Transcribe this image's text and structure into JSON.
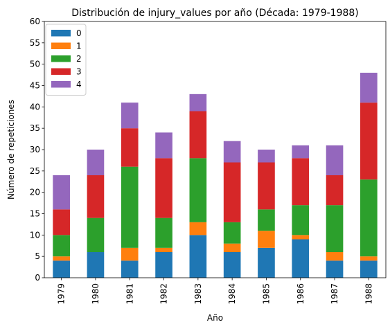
{
  "chart_data": {
    "type": "bar",
    "stacked": true,
    "title": "Distribución de injury_values por año (Década: 1979-1988)",
    "xlabel": "Año",
    "ylabel": "Número de repeticiones",
    "categories": [
      "1979",
      "1980",
      "1981",
      "1982",
      "1983",
      "1984",
      "1985",
      "1986",
      "1987",
      "1988"
    ],
    "series": [
      {
        "name": "0",
        "color": "#1f77b4",
        "values": [
          4,
          6,
          4,
          6,
          10,
          6,
          7,
          9,
          4,
          4
        ]
      },
      {
        "name": "1",
        "color": "#ff7f0e",
        "values": [
          1,
          0,
          3,
          1,
          3,
          2,
          4,
          1,
          2,
          1
        ]
      },
      {
        "name": "2",
        "color": "#2ca02c",
        "values": [
          5,
          8,
          19,
          7,
          15,
          5,
          5,
          7,
          11,
          18
        ]
      },
      {
        "name": "3",
        "color": "#d62728",
        "values": [
          6,
          10,
          9,
          14,
          11,
          14,
          11,
          11,
          7,
          18
        ]
      },
      {
        "name": "4",
        "color": "#9467bd",
        "values": [
          8,
          6,
          6,
          6,
          4,
          5,
          3,
          3,
          7,
          7
        ]
      }
    ],
    "ylim": [
      0,
      60
    ],
    "yticks": [
      0,
      5,
      10,
      15,
      20,
      25,
      30,
      35,
      40,
      45,
      50,
      55,
      60
    ],
    "legend": "top-left",
    "grid": false
  }
}
